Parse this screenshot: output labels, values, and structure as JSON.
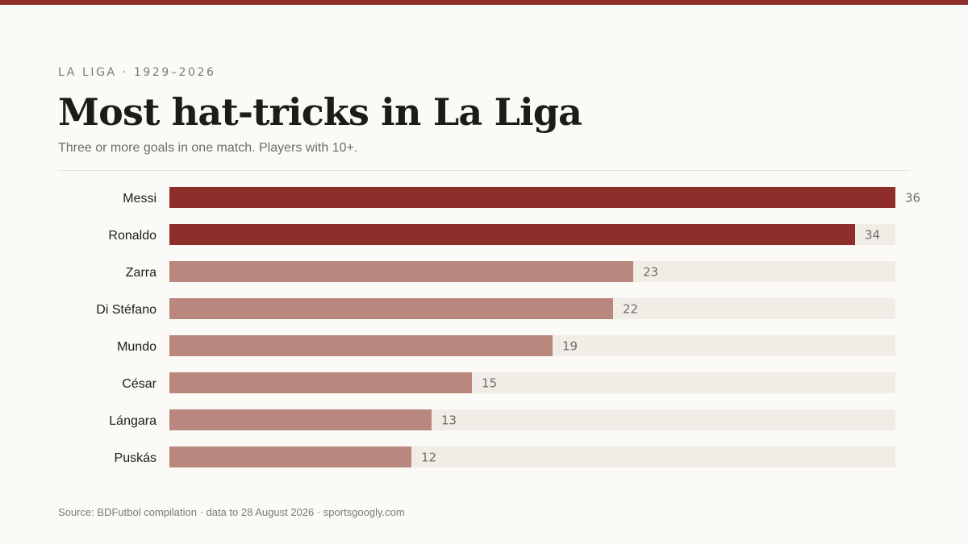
{
  "header": {
    "eyebrow": "LA LIGA · 1929–2026",
    "title": "Most hat-tricks in La Liga",
    "subtitle": "Three or more goals in one match. Players with 10+."
  },
  "footer": {
    "source": "Source: BDFutbol compilation · data to 28 August 2026 · sportsgoogly.com"
  },
  "colors": {
    "page_background": "#fbfaf6",
    "accent": "#8d2e2b",
    "highlight_bar": "#8d2e2b",
    "regular_bar": "#b9877e",
    "track": "#efede6",
    "label_text": "#1c1b18",
    "value_text": "#6e6d68"
  },
  "chart_data": {
    "type": "bar",
    "orientation": "horizontal",
    "categories": [
      "Messi",
      "Ronaldo",
      "Zarra",
      "Di Stéfano",
      "Mundo",
      "César",
      "Lángara",
      "Puskás"
    ],
    "values": [
      36,
      34,
      23,
      22,
      19,
      15,
      13,
      12
    ],
    "highlighted": [
      "Messi",
      "Ronaldo"
    ],
    "xlim": [
      0,
      36
    ],
    "grid": false,
    "legend": "none"
  }
}
